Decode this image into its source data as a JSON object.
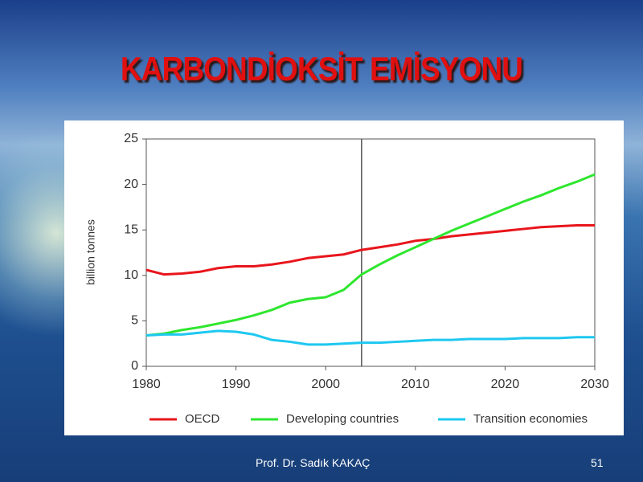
{
  "chart_data": {
    "type": "line",
    "title": "KARBONDİOKSİT EMİSYONU",
    "y_label": "billion tonnes",
    "x": [
      1980,
      1982,
      1984,
      1986,
      1988,
      1990,
      1992,
      1994,
      1996,
      1998,
      2000,
      2002,
      2004,
      2006,
      2008,
      2010,
      2012,
      2014,
      2016,
      2018,
      2020,
      2022,
      2024,
      2026,
      2028,
      2030
    ],
    "series": [
      {
        "name": "OECD",
        "color": "#e8161c",
        "values": [
          10.6,
          10.1,
          10.2,
          10.4,
          10.8,
          11.0,
          11.0,
          11.2,
          11.5,
          11.9,
          12.1,
          12.3,
          12.8,
          13.1,
          13.4,
          13.8,
          14.0,
          14.3,
          14.5,
          14.7,
          14.9,
          15.1,
          15.3,
          15.4,
          15.5,
          15.5
        ]
      },
      {
        "name": "Developing countries",
        "color": "#2ee62e",
        "values": [
          3.4,
          3.6,
          4.0,
          4.3,
          4.7,
          5.1,
          5.6,
          6.2,
          7.0,
          7.4,
          7.6,
          8.4,
          10.1,
          11.2,
          12.2,
          13.1,
          14.0,
          14.9,
          15.7,
          16.5,
          17.3,
          18.1,
          18.8,
          19.6,
          20.3,
          21.1
        ]
      },
      {
        "name": "Transition economies",
        "color": "#1ec8f0",
        "values": [
          3.4,
          3.5,
          3.5,
          3.7,
          3.9,
          3.8,
          3.5,
          2.9,
          2.7,
          2.4,
          2.4,
          2.5,
          2.6,
          2.6,
          2.7,
          2.8,
          2.9,
          2.9,
          3.0,
          3.0,
          3.0,
          3.1,
          3.1,
          3.1,
          3.2,
          3.2
        ]
      }
    ],
    "xlim": [
      1980,
      2030
    ],
    "xticks": [
      1980,
      1990,
      2000,
      2010,
      2020,
      2030
    ],
    "ylim": [
      0,
      25
    ],
    "yticks": [
      0,
      5,
      10,
      15,
      20,
      25
    ],
    "vline": 2004,
    "grid": false,
    "legend": "bottom"
  },
  "footer": {
    "author": "Prof. Dr. Sadık KAKAÇ",
    "page": "51"
  }
}
